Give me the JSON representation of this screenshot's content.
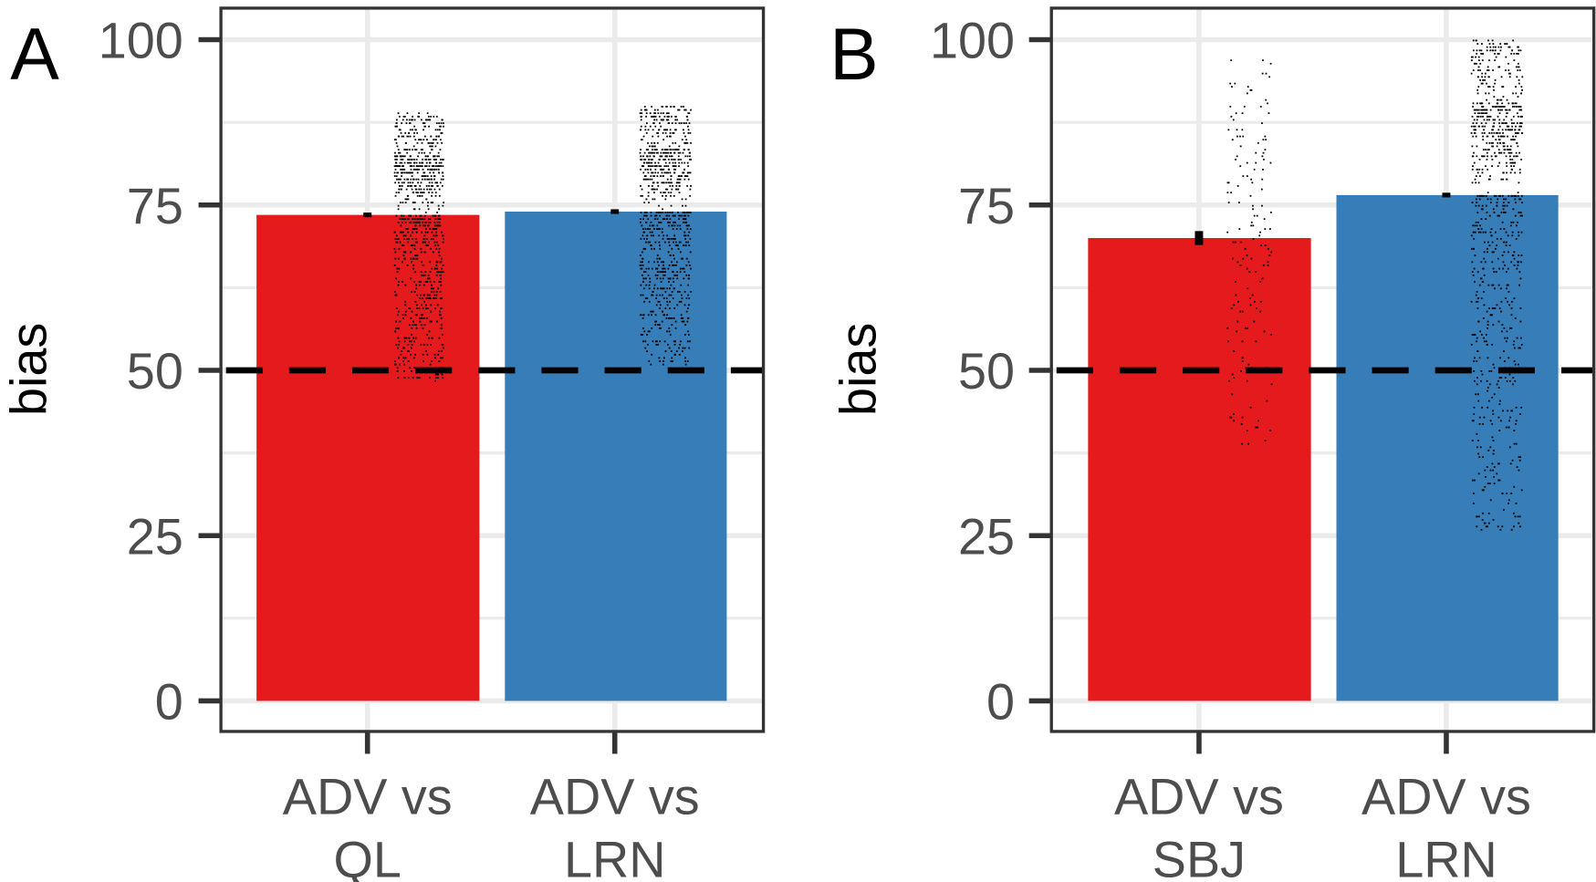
{
  "chart_data": [
    {
      "type": "bar",
      "panel_label": "A",
      "ylabel": "bias",
      "ylim": [
        0,
        100
      ],
      "yticks": [
        "0",
        "25",
        "50",
        "75",
        "100"
      ],
      "categories": [
        [
          "ADV vs",
          "QL"
        ],
        [
          "ADV vs",
          "LRN"
        ]
      ],
      "values": [
        73.5,
        74
      ],
      "error": [
        0.2,
        0.2
      ],
      "colors": [
        "#E41A1C",
        "#377EB8"
      ],
      "reference_line": 50,
      "points_range": [
        [
          48,
          89
        ],
        [
          51,
          90
        ]
      ],
      "points_density": [
        "dense",
        "dense"
      ],
      "grid": true
    },
    {
      "type": "bar",
      "panel_label": "B",
      "ylabel": "bias",
      "ylim": [
        0,
        100
      ],
      "yticks": [
        "0",
        "25",
        "50",
        "75",
        "100"
      ],
      "categories": [
        [
          "ADV vs",
          "SBJ"
        ],
        [
          "ADV vs",
          "LRN"
        ]
      ],
      "values": [
        70,
        76.5
      ],
      "error": [
        0.9,
        0.2
      ],
      "colors": [
        "#E41A1C",
        "#377EB8"
      ],
      "reference_line": 50,
      "points_range": [
        [
          39,
          98
        ],
        [
          26,
          100
        ]
      ],
      "points_density": [
        "sparse",
        "dense"
      ],
      "grid": true
    }
  ]
}
